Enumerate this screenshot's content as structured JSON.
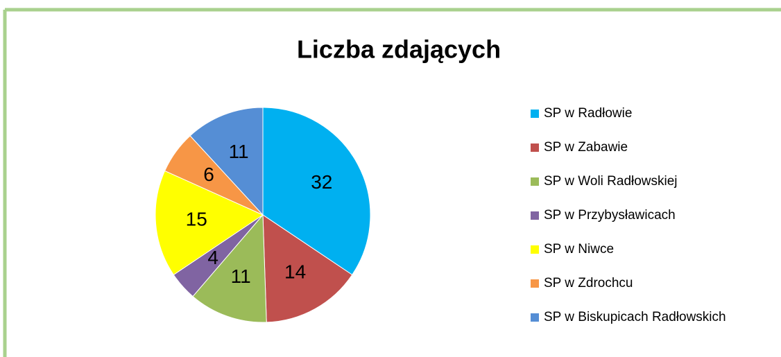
{
  "chart_data": {
    "type": "pie",
    "title": "Liczba zdających",
    "categories": [
      "SP w Radłowie",
      "SP w Zabawie",
      "SP w Woli Radłowskiej",
      "SP w Przybysławicach",
      "SP w Niwce",
      "SP w Zdrochcu",
      "SP w Biskupicach Radłowskich"
    ],
    "values": [
      32,
      14,
      11,
      4,
      15,
      6,
      11
    ],
    "colors": [
      "#00b0f0",
      "#c0504d",
      "#9bbb59",
      "#8064a2",
      "#ffff00",
      "#f79646",
      "#558ed5"
    ],
    "legend": "right"
  }
}
